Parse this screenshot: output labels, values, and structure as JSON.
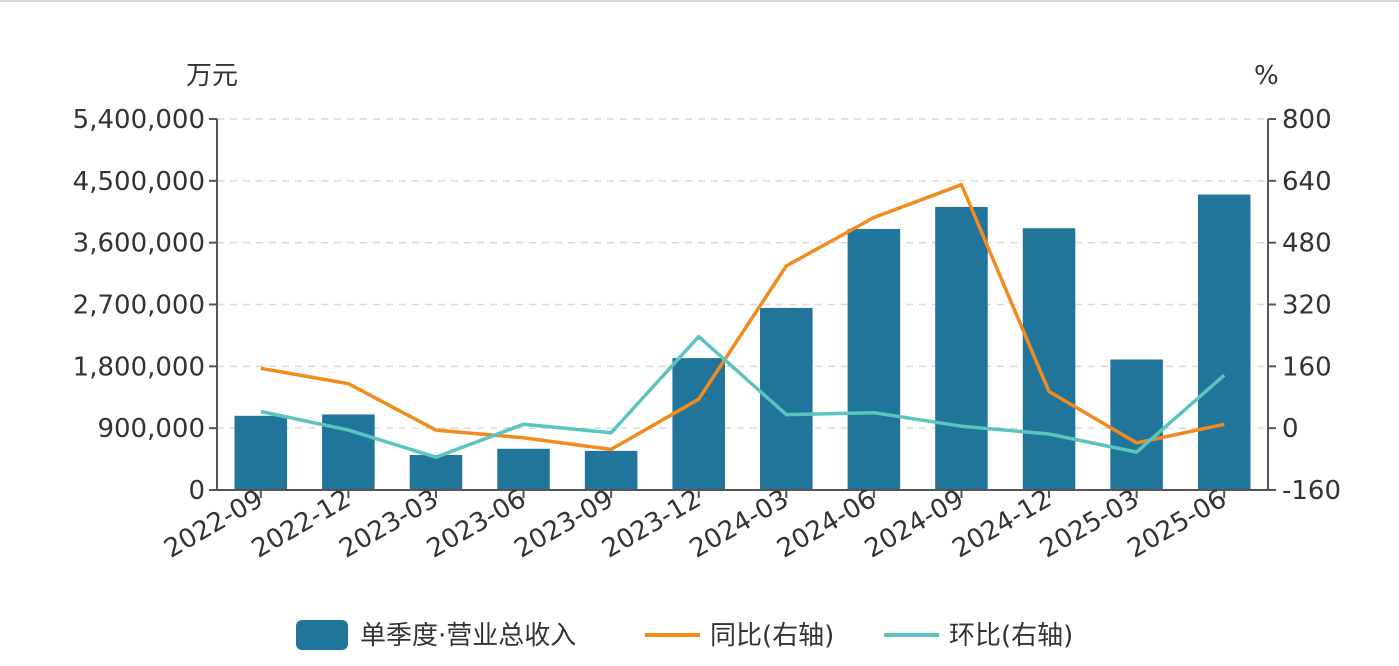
{
  "chart_data": {
    "type": "bar",
    "left_unit": "万元",
    "right_unit": "%",
    "categories": [
      "2022-09",
      "2022-12",
      "2023-03",
      "2023-06",
      "2023-09",
      "2023-12",
      "2024-03",
      "2024-06",
      "2024-09",
      "2024-12",
      "2025-03",
      "2025-06"
    ],
    "left_axis": {
      "ylim": [
        0,
        5400000
      ],
      "ticks": [
        "0",
        "900,000",
        "1,800,000",
        "2,700,000",
        "3,600,000",
        "4,500,000",
        "5,400,000"
      ]
    },
    "right_axis": {
      "ylim": [
        -160,
        800
      ],
      "ticks": [
        "-160",
        "0",
        "160",
        "320",
        "480",
        "640",
        "800"
      ]
    },
    "grid": true,
    "legend_position": "bottom",
    "series": [
      {
        "name": "单季度·营业总收入",
        "type": "bar",
        "axis": "left",
        "color": "#21759b",
        "values": [
          1080000,
          1100000,
          510000,
          600000,
          570000,
          1920000,
          2650000,
          3800000,
          4120000,
          3810000,
          1900000,
          4300000
        ]
      },
      {
        "name": "同比(右轴)",
        "type": "line",
        "axis": "right",
        "color": "#f28a1e",
        "values": [
          155,
          115,
          -5,
          -25,
          -55,
          75,
          420,
          545,
          630,
          95,
          -38,
          10
        ]
      },
      {
        "name": "环比(右轴)",
        "type": "line",
        "axis": "right",
        "color": "#5bc4c0",
        "values": [
          43,
          -5,
          -75,
          10,
          -12,
          237,
          35,
          40,
          5,
          -15,
          -62,
          137
        ]
      }
    ]
  }
}
